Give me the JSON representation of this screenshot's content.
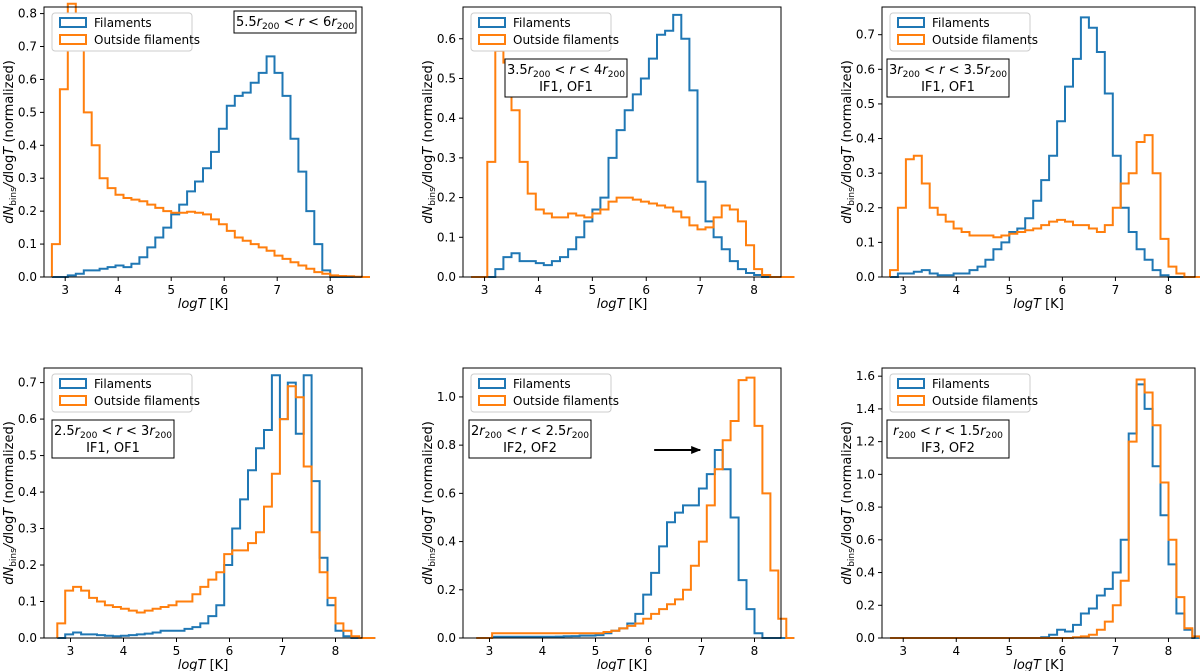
{
  "figure": {
    "xlabel": "logT [K]",
    "ylabel": "dN_bins/dlogT (normalized)",
    "legend_filaments": "Filaments",
    "legend_outside": "Outside filaments",
    "colors": {
      "filaments": "#1f77b4",
      "outside": "#ff7f0e",
      "axis": "#000000",
      "arrow": "#000000"
    }
  },
  "chart_data": [
    {
      "type": "line",
      "title": "",
      "annotation": [
        "5.5r200 < r < 6r200"
      ],
      "xlim": [
        2.6,
        8.6
      ],
      "ylim": [
        0,
        0.82
      ],
      "xticks": [
        "3",
        "4",
        "5",
        "6",
        "7",
        "8"
      ],
      "yticks": [
        "0.0",
        "0.1",
        "0.2",
        "0.3",
        "0.4",
        "0.5",
        "0.6",
        "0.7",
        "0.8"
      ],
      "bin_edges_start": 2.75,
      "bin_width": 0.15,
      "series": [
        {
          "name": "Filaments",
          "values": [
            0,
            0,
            0.005,
            0.01,
            0.02,
            0.02,
            0.025,
            0.03,
            0.035,
            0.03,
            0.04,
            0.06,
            0.09,
            0.12,
            0.15,
            0.19,
            0.22,
            0.26,
            0.29,
            0.33,
            0.38,
            0.45,
            0.52,
            0.55,
            0.56,
            0.59,
            0.62,
            0.67,
            0.62,
            0.55,
            0.42,
            0.32,
            0.2,
            0.1,
            0.02,
            0,
            0,
            0,
            0,
            0
          ]
        },
        {
          "name": "Outside filaments",
          "values": [
            0.1,
            0.57,
            0.83,
            0.74,
            0.5,
            0.4,
            0.3,
            0.27,
            0.25,
            0.24,
            0.235,
            0.23,
            0.22,
            0.21,
            0.2,
            0.195,
            0.195,
            0.198,
            0.195,
            0.19,
            0.175,
            0.16,
            0.14,
            0.12,
            0.11,
            0.1,
            0.09,
            0.08,
            0.065,
            0.055,
            0.045,
            0.035,
            0.025,
            0.015,
            0.01,
            0.005,
            0.003,
            0.002,
            0.001,
            0
          ]
        }
      ]
    },
    {
      "type": "line",
      "title": "",
      "annotation": [
        "3.5r200 < r < 4r200",
        "IF1, OF1"
      ],
      "xlim": [
        2.6,
        8.5
      ],
      "ylim": [
        0,
        0.68
      ],
      "xticks": [
        "3",
        "4",
        "5",
        "6",
        "7",
        "8"
      ],
      "yticks": [
        "0.0",
        "0.1",
        "0.2",
        "0.3",
        "0.4",
        "0.5",
        "0.6"
      ],
      "bin_edges_start": 2.75,
      "bin_width": 0.15,
      "series": [
        {
          "name": "Filaments",
          "values": [
            0,
            0,
            0,
            0.02,
            0.05,
            0.06,
            0.04,
            0.04,
            0.035,
            0.03,
            0.04,
            0.05,
            0.07,
            0.1,
            0.14,
            0.17,
            0.2,
            0.3,
            0.37,
            0.42,
            0.46,
            0.5,
            0.55,
            0.61,
            0.62,
            0.66,
            0.6,
            0.47,
            0.24,
            0.14,
            0.1,
            0.07,
            0.04,
            0.02,
            0.01,
            0.005,
            0,
            0,
            0,
            0
          ]
        },
        {
          "name": "Outside filaments",
          "values": [
            0,
            0,
            0.29,
            0.57,
            0.54,
            0.42,
            0.29,
            0.21,
            0.17,
            0.16,
            0.15,
            0.15,
            0.16,
            0.155,
            0.15,
            0.16,
            0.17,
            0.19,
            0.2,
            0.2,
            0.195,
            0.19,
            0.185,
            0.18,
            0.175,
            0.165,
            0.15,
            0.13,
            0.12,
            0.125,
            0.15,
            0.18,
            0.17,
            0.14,
            0.08,
            0.02,
            0.005,
            0,
            0,
            0
          ]
        }
      ]
    },
    {
      "type": "line",
      "title": "",
      "annotation": [
        "3r200 < r < 3.5r200",
        "IF1, OF1"
      ],
      "xlim": [
        2.6,
        8.5
      ],
      "ylim": [
        0,
        0.78
      ],
      "xticks": [
        "3",
        "4",
        "5",
        "6",
        "7",
        "8"
      ],
      "yticks": [
        "0.0",
        "0.1",
        "0.2",
        "0.3",
        "0.4",
        "0.5",
        "0.6",
        "0.7"
      ],
      "bin_edges_start": 2.75,
      "bin_width": 0.15,
      "series": [
        {
          "name": "Filaments",
          "values": [
            0,
            0.01,
            0.01,
            0.015,
            0.02,
            0.01,
            0.005,
            0.005,
            0.01,
            0.01,
            0.02,
            0.03,
            0.05,
            0.08,
            0.1,
            0.13,
            0.14,
            0.17,
            0.22,
            0.28,
            0.35,
            0.45,
            0.55,
            0.63,
            0.75,
            0.72,
            0.65,
            0.53,
            0.35,
            0.2,
            0.13,
            0.08,
            0.05,
            0.02,
            0.005,
            0,
            0,
            0,
            0,
            0
          ]
        },
        {
          "name": "Outside filaments",
          "values": [
            0.02,
            0.2,
            0.34,
            0.35,
            0.27,
            0.2,
            0.18,
            0.16,
            0.14,
            0.13,
            0.12,
            0.12,
            0.12,
            0.115,
            0.12,
            0.125,
            0.13,
            0.135,
            0.14,
            0.15,
            0.16,
            0.165,
            0.16,
            0.15,
            0.15,
            0.14,
            0.13,
            0.15,
            0.2,
            0.27,
            0.3,
            0.39,
            0.41,
            0.3,
            0.11,
            0.03,
            0.01,
            0,
            0,
            0
          ]
        }
      ]
    },
    {
      "type": "line",
      "title": "",
      "annotation": [
        "2.5r200 < r < 3r200",
        "IF1, OF1"
      ],
      "xlim": [
        2.5,
        8.5
      ],
      "ylim": [
        0,
        0.74
      ],
      "xticks": [
        "3",
        "4",
        "5",
        "6",
        "7",
        "8"
      ],
      "yticks": [
        "0.0",
        "0.1",
        "0.2",
        "0.3",
        "0.4",
        "0.5",
        "0.6",
        "0.7"
      ],
      "bin_edges_start": 2.75,
      "bin_width": 0.15,
      "series": [
        {
          "name": "Filaments",
          "values": [
            0,
            0.01,
            0.015,
            0.01,
            0.01,
            0.008,
            0.006,
            0.005,
            0.006,
            0.008,
            0.01,
            0.012,
            0.015,
            0.02,
            0.02,
            0.02,
            0.025,
            0.03,
            0.04,
            0.06,
            0.09,
            0.2,
            0.3,
            0.38,
            0.46,
            0.52,
            0.57,
            0.72,
            0.6,
            0.7,
            0.56,
            0.72,
            0.43,
            0.22,
            0.09,
            0.02,
            0.005,
            0,
            0,
            0
          ]
        },
        {
          "name": "Outside filaments",
          "values": [
            0.04,
            0.13,
            0.14,
            0.13,
            0.11,
            0.1,
            0.09,
            0.085,
            0.08,
            0.075,
            0.07,
            0.075,
            0.08,
            0.085,
            0.09,
            0.1,
            0.1,
            0.12,
            0.14,
            0.16,
            0.18,
            0.23,
            0.24,
            0.24,
            0.26,
            0.29,
            0.36,
            0.45,
            0.6,
            0.69,
            0.66,
            0.47,
            0.29,
            0.18,
            0.11,
            0.04,
            0.02,
            0.005,
            0,
            0
          ]
        }
      ]
    },
    {
      "type": "line",
      "title": "",
      "annotation": [
        "2r200 < r < 2.5r200",
        "IF2, OF2"
      ],
      "xlim": [
        2.5,
        8.5
      ],
      "ylim": [
        0,
        1.12
      ],
      "xticks": [
        "3",
        "4",
        "5",
        "6",
        "7",
        "8"
      ],
      "yticks": [
        "0.0",
        "0.2",
        "0.4",
        "0.6",
        "0.8",
        "1.0"
      ],
      "bin_edges_start": 2.75,
      "bin_width": 0.15,
      "arrow_target": {
        "x": 7.05,
        "y": 0.78
      },
      "series": [
        {
          "name": "Filaments",
          "values": [
            0,
            0,
            0.005,
            0.005,
            0.005,
            0.005,
            0.005,
            0.005,
            0.005,
            0.005,
            0.006,
            0.007,
            0.008,
            0.01,
            0.01,
            0.012,
            0.02,
            0.03,
            0.04,
            0.06,
            0.1,
            0.18,
            0.27,
            0.38,
            0.48,
            0.52,
            0.55,
            0.55,
            0.62,
            0.68,
            0.78,
            0.7,
            0.5,
            0.24,
            0.12,
            0.02,
            0,
            0,
            0,
            0
          ]
        },
        {
          "name": "Outside filaments",
          "values": [
            0,
            0,
            0.02,
            0.02,
            0.02,
            0.02,
            0.02,
            0.02,
            0.02,
            0.02,
            0.02,
            0.02,
            0.02,
            0.02,
            0.02,
            0.02,
            0.025,
            0.03,
            0.04,
            0.05,
            0.06,
            0.08,
            0.1,
            0.12,
            0.14,
            0.16,
            0.2,
            0.3,
            0.4,
            0.55,
            0.7,
            0.82,
            0.9,
            1.07,
            1.08,
            0.88,
            0.6,
            0.28,
            0.08,
            0
          ]
        }
      ]
    },
    {
      "type": "line",
      "title": "",
      "annotation": [
        "r200 < r < 1.5r200",
        "IF3, OF2"
      ],
      "xlim": [
        2.6,
        8.5
      ],
      "ylim": [
        0,
        1.65
      ],
      "xticks": [
        "3",
        "4",
        "5",
        "6",
        "7",
        "8"
      ],
      "yticks": [
        "0.0",
        "0.2",
        "0.4",
        "0.6",
        "0.8",
        "1.0",
        "1.2",
        "1.4",
        "1.6"
      ],
      "bin_edges_start": 2.75,
      "bin_width": 0.15,
      "series": [
        {
          "name": "Filaments",
          "values": [
            0,
            0,
            0,
            0,
            0,
            0,
            0,
            0,
            0,
            0,
            0,
            0,
            0,
            0,
            0,
            0,
            0,
            0,
            0,
            0.005,
            0.02,
            0.05,
            0.04,
            0.08,
            0.15,
            0.18,
            0.26,
            0.3,
            0.4,
            0.6,
            1.25,
            1.55,
            1.4,
            1.05,
            0.75,
            0.45,
            0.15,
            0.05,
            0,
            0
          ]
        },
        {
          "name": "Outside filaments",
          "values": [
            0,
            0,
            0,
            0,
            0,
            0,
            0,
            0,
            0,
            0,
            0,
            0,
            0,
            0,
            0,
            0,
            0,
            0,
            0,
            0,
            0,
            0,
            0,
            0.005,
            0.01,
            0.02,
            0.05,
            0.1,
            0.2,
            0.35,
            1.2,
            1.58,
            1.5,
            1.3,
            0.95,
            0.6,
            0.25,
            0.06,
            0.01,
            0
          ]
        }
      ]
    }
  ]
}
